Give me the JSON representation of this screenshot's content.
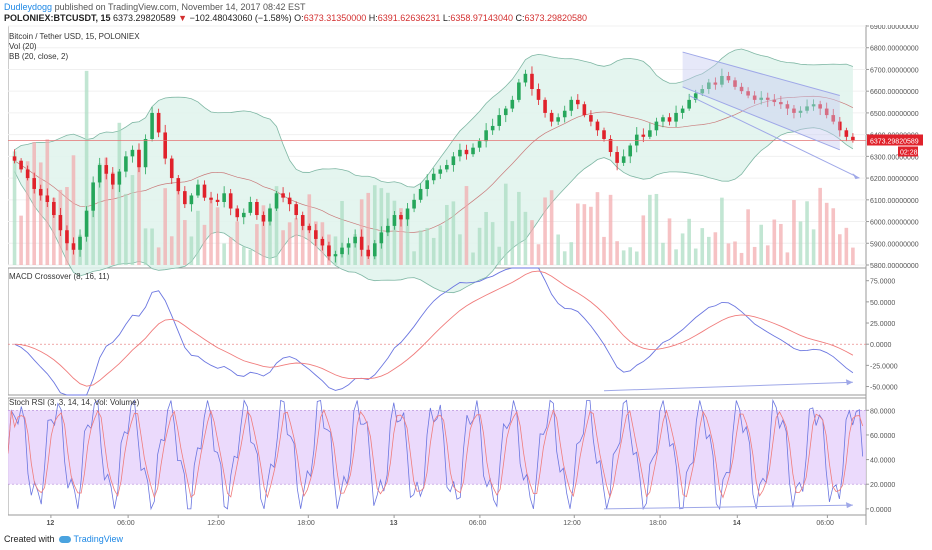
{
  "header": {
    "author": "Dudleydogg",
    "published": "published on TradingView.com, November 14, 2017 08:42 EST",
    "symbol": "POLONIEX:BTCUSDT, 15",
    "last_price": "6373.29820589",
    "change_arrow": "▼",
    "change": "−102.48043060 (−1.58%)",
    "o_label": "O:",
    "o": "6373.31350000",
    "h_label": "H:",
    "h": "6391.62636231",
    "l_label": "L:",
    "l": "6358.97143040",
    "c_label": "C:",
    "c": "6373.29820580"
  },
  "panes": {
    "price": {
      "title": "Bitcoin / Tether USD, 15, POLONIEX",
      "vol": "Vol (20)",
      "bb": "BB (20, close, 2)",
      "axis_ticks": [
        "6900.00000000",
        "6800.00000000",
        "6700.00000000",
        "6600.00000000",
        "6500.00000000",
        "6400.00000000",
        "6300.00000000",
        "6200.00000000",
        "6100.00000000",
        "6000.00000000",
        "5900.00000000",
        "5800.00000000"
      ],
      "price_tag": "6373.29820589",
      "time_tag": "02:28"
    },
    "macd": {
      "title": "MACD Crossover (8, 16, 11)",
      "axis_ticks": [
        "75.0000",
        "50.0000",
        "25.0000",
        "0.0000",
        "-25.0000",
        "-50.0000"
      ]
    },
    "stoch": {
      "title": "Stoch RSI (3, 3, 14, 14, Vol: Volume)",
      "axis_ticks": [
        "80.0000",
        "60.0000",
        "40.0000",
        "20.0000",
        "0.0000"
      ]
    }
  },
  "time_axis": [
    "12",
    "06:00",
    "12:00",
    "18:00",
    "13",
    "06:00",
    "12:00",
    "18:00",
    "14",
    "06:00"
  ],
  "footer": {
    "created_with": "Created with",
    "brand": "TradingView"
  },
  "colors": {
    "up": "#26a65b",
    "down": "#e0222b",
    "bb_fill": "#dff3ec",
    "bb_line": "#7fb7a4",
    "macd_line": "#6b76e0",
    "signal_line": "#f07c7c",
    "stoch_band": "#e8d4fb",
    "channel": "#9fa8e8",
    "price_line": "#e57373"
  },
  "chart_data": [
    {
      "type": "candlestick",
      "title": "Bitcoin / Tether USD, 15, POLONIEX",
      "ylim": [
        5800,
        6900
      ],
      "closes": [
        6280,
        6240,
        6200,
        6150,
        6120,
        6090,
        6030,
        5960,
        5900,
        5870,
        5930,
        6050,
        6180,
        6260,
        6220,
        6170,
        6230,
        6300,
        6330,
        6250,
        6380,
        6500,
        6410,
        6290,
        6200,
        6140,
        6080,
        6120,
        6170,
        6110,
        6100,
        6090,
        6130,
        6060,
        6020,
        6040,
        6090,
        6030,
        6000,
        6060,
        6130,
        6110,
        6080,
        6030,
        5980,
        5960,
        5920,
        5890,
        5840,
        5850,
        5880,
        5900,
        5930,
        5870,
        5840,
        5900,
        5950,
        5980,
        6030,
        6010,
        6060,
        6100,
        6150,
        6190,
        6220,
        6240,
        6260,
        6300,
        6330,
        6310,
        6340,
        6370,
        6420,
        6440,
        6490,
        6520,
        6560,
        6640,
        6680,
        6610,
        6560,
        6500,
        6460,
        6480,
        6510,
        6560,
        6540,
        6490,
        6460,
        6420,
        6380,
        6320,
        6270,
        6300,
        6350,
        6400,
        6390,
        6420,
        6460,
        6480,
        6460,
        6500,
        6520,
        6560,
        6590,
        6610,
        6640,
        6630,
        6670,
        6650,
        6620,
        6600,
        6580,
        6560,
        6570,
        6560,
        6550,
        6540,
        6520,
        6500,
        6510,
        6530,
        6540,
        6520,
        6490,
        6460,
        6420,
        6390,
        6373
      ]
    },
    {
      "type": "line",
      "title": "MACD Crossover (8, 16, 11)",
      "ylim": [
        -60,
        90
      ]
    },
    {
      "type": "line",
      "title": "Stoch RSI (3, 3, 14, 14, Vol: Volume)",
      "ylim": [
        -5,
        90
      ]
    }
  ]
}
